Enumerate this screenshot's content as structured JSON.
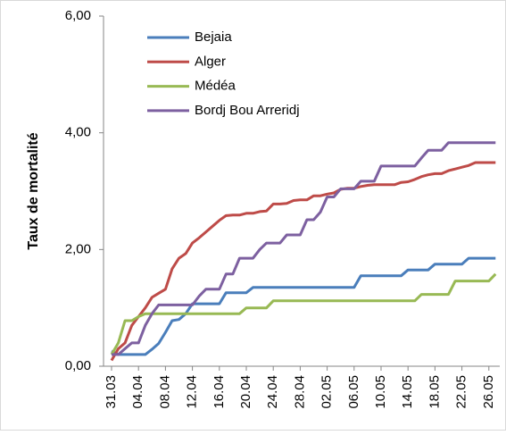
{
  "chart_data": {
    "type": "line",
    "y_axis_label": "Taux de mortalité",
    "categories": [
      "31.03",
      null,
      null,
      null,
      "04.04",
      null,
      null,
      null,
      "08.04",
      null,
      null,
      null,
      "12.04",
      null,
      null,
      null,
      "16.04",
      null,
      null,
      null,
      "20.04",
      null,
      null,
      null,
      "24.04",
      null,
      null,
      null,
      "28.04",
      null,
      null,
      null,
      "02.05",
      null,
      null,
      null,
      "06.05",
      null,
      null,
      null,
      "10.05",
      null,
      null,
      null,
      "14.05",
      null,
      null,
      null,
      "18.05",
      null,
      null,
      null,
      "22.05",
      null,
      null,
      null,
      "26.05",
      null
    ],
    "series": [
      {
        "name": "Bejaia",
        "color": "#4a7ebb",
        "values": [
          0.26,
          0.2,
          0.2,
          0.2,
          0.2,
          0.2,
          0.29,
          0.39,
          0.58,
          0.78,
          0.8,
          0.9,
          1.07,
          1.07,
          1.07,
          1.07,
          1.07,
          1.26,
          1.26,
          1.26,
          1.26,
          1.35,
          1.35,
          1.35,
          1.35,
          1.35,
          1.35,
          1.35,
          1.35,
          1.35,
          1.35,
          1.35,
          1.35,
          1.35,
          1.35,
          1.35,
          1.35,
          1.55,
          1.55,
          1.55,
          1.55,
          1.55,
          1.55,
          1.55,
          1.65,
          1.65,
          1.65,
          1.65,
          1.75,
          1.75,
          1.75,
          1.75,
          1.75,
          1.85,
          1.85,
          1.85,
          1.85,
          1.85
        ]
      },
      {
        "name": "Alger",
        "color": "#be4b48",
        "values": [
          0.1,
          0.3,
          0.4,
          0.7,
          0.85,
          1.0,
          1.18,
          1.25,
          1.32,
          1.67,
          1.85,
          1.93,
          2.11,
          2.2,
          2.3,
          2.4,
          2.5,
          2.58,
          2.59,
          2.59,
          2.62,
          2.62,
          2.65,
          2.66,
          2.78,
          2.78,
          2.79,
          2.84,
          2.85,
          2.85,
          2.92,
          2.92,
          2.95,
          2.97,
          3.03,
          3.05,
          3.05,
          3.08,
          3.1,
          3.11,
          3.11,
          3.11,
          3.11,
          3.15,
          3.16,
          3.2,
          3.25,
          3.28,
          3.3,
          3.3,
          3.35,
          3.38,
          3.41,
          3.44,
          3.49,
          3.49,
          3.49,
          3.49
        ]
      },
      {
        "name": "Médéa",
        "color": "#98b954",
        "values": [
          0.2,
          0.4,
          0.78,
          0.78,
          0.85,
          0.9,
          0.9,
          0.9,
          0.9,
          0.9,
          0.9,
          0.9,
          0.9,
          0.9,
          0.9,
          0.9,
          0.9,
          0.9,
          0.9,
          0.9,
          1.0,
          1.0,
          1.0,
          1.0,
          1.12,
          1.12,
          1.12,
          1.12,
          1.12,
          1.12,
          1.12,
          1.12,
          1.12,
          1.12,
          1.12,
          1.12,
          1.12,
          1.12,
          1.12,
          1.12,
          1.12,
          1.12,
          1.12,
          1.12,
          1.12,
          1.12,
          1.23,
          1.23,
          1.23,
          1.23,
          1.23,
          1.46,
          1.46,
          1.46,
          1.46,
          1.46,
          1.46,
          1.58
        ]
      },
      {
        "name": "Bordj Bou Arreridj",
        "color": "#7d60a0",
        "values": [
          0.2,
          0.2,
          0.3,
          0.4,
          0.4,
          0.7,
          0.9,
          1.05,
          1.05,
          1.05,
          1.05,
          1.05,
          1.05,
          1.2,
          1.32,
          1.32,
          1.32,
          1.58,
          1.58,
          1.85,
          1.85,
          1.85,
          2.0,
          2.11,
          2.11,
          2.11,
          2.25,
          2.25,
          2.25,
          2.51,
          2.51,
          2.64,
          2.9,
          2.9,
          3.04,
          3.04,
          3.04,
          3.17,
          3.17,
          3.17,
          3.43,
          3.43,
          3.43,
          3.43,
          3.43,
          3.43,
          3.57,
          3.7,
          3.7,
          3.7,
          3.83,
          3.83,
          3.83,
          3.83,
          3.83,
          3.83,
          3.83,
          3.83
        ]
      }
    ],
    "ylim": [
      0,
      6
    ],
    "yticks": [
      {
        "value": 0,
        "label": "0,00"
      },
      {
        "value": 2,
        "label": "2,00"
      },
      {
        "value": 4,
        "label": "4,00"
      },
      {
        "value": 6,
        "label": "6,00"
      }
    ],
    "grid": false,
    "legend": "upper left"
  }
}
